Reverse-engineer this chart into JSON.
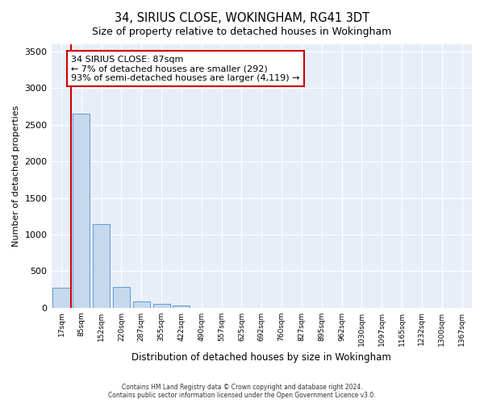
{
  "title": "34, SIRIUS CLOSE, WOKINGHAM, RG41 3DT",
  "subtitle": "Size of property relative to detached houses in Wokingham",
  "xlabel": "Distribution of detached houses by size in Wokingham",
  "ylabel": "Number of detached properties",
  "categories": [
    "17sqm",
    "85sqm",
    "152sqm",
    "220sqm",
    "287sqm",
    "355sqm",
    "422sqm",
    "490sqm",
    "557sqm",
    "625sqm",
    "692sqm",
    "760sqm",
    "827sqm",
    "895sqm",
    "962sqm",
    "1030sqm",
    "1097sqm",
    "1165sqm",
    "1232sqm",
    "1300sqm",
    "1367sqm"
  ],
  "bar_values": [
    270,
    2650,
    1140,
    280,
    90,
    55,
    35,
    0,
    0,
    0,
    0,
    0,
    0,
    0,
    0,
    0,
    0,
    0,
    0,
    0,
    0
  ],
  "bar_color": "#c5d8ee",
  "bar_edge_color": "#5b9bd5",
  "annotation_text_title": "34 SIRIUS CLOSE: 87sqm",
  "annotation_text_line1": "← 7% of detached houses are smaller (292)",
  "annotation_text_line2": "93% of semi-detached houses are larger (4,119) →",
  "annotation_box_facecolor": "#ffffff",
  "annotation_box_edgecolor": "#cc0000",
  "vline_color": "#cc0000",
  "vline_x": 0.5,
  "ylim": [
    0,
    3600
  ],
  "yticks": [
    0,
    500,
    1000,
    1500,
    2000,
    2500,
    3000,
    3500
  ],
  "plot_bg_color": "#e8eef8",
  "fig_bg_color": "#ffffff",
  "grid_color": "#ffffff",
  "footer_line1": "Contains HM Land Registry data © Crown copyright and database right 2024.",
  "footer_line2": "Contains public sector information licensed under the Open Government Licence v3.0."
}
